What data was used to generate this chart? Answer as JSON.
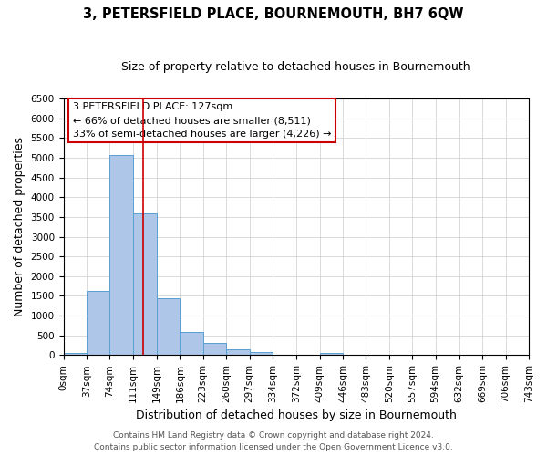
{
  "title": "3, PETERSFIELD PLACE, BOURNEMOUTH, BH7 6QW",
  "subtitle": "Size of property relative to detached houses in Bournemouth",
  "xlabel": "Distribution of detached houses by size in Bournemouth",
  "ylabel": "Number of detached properties",
  "footer_line1": "Contains HM Land Registry data © Crown copyright and database right 2024.",
  "footer_line2": "Contains public sector information licensed under the Open Government Licence v3.0.",
  "bin_edges": [
    0,
    37,
    74,
    111,
    149,
    186,
    223,
    260,
    297,
    334,
    372,
    409,
    446,
    483,
    520,
    557,
    594,
    632,
    669,
    706,
    743
  ],
  "bin_labels": [
    "0sqm",
    "37sqm",
    "74sqm",
    "111sqm",
    "149sqm",
    "186sqm",
    "223sqm",
    "260sqm",
    "297sqm",
    "334sqm",
    "372sqm",
    "409sqm",
    "446sqm",
    "483sqm",
    "520sqm",
    "557sqm",
    "594sqm",
    "632sqm",
    "669sqm",
    "706sqm",
    "743sqm"
  ],
  "counts": [
    50,
    1620,
    5070,
    3580,
    1430,
    580,
    300,
    140,
    70,
    0,
    0,
    50,
    0,
    0,
    0,
    0,
    0,
    0,
    0,
    0
  ],
  "bar_color": "#aec6e8",
  "bar_edge_color": "#5a9fd4",
  "ylim": [
    0,
    6500
  ],
  "yticks": [
    0,
    500,
    1000,
    1500,
    2000,
    2500,
    3000,
    3500,
    4000,
    4500,
    5000,
    5500,
    6000,
    6500
  ],
  "vline_x": 127,
  "vline_color": "#cc0000",
  "annotation_line1": "3 PETERSFIELD PLACE: 127sqm",
  "annotation_line2": "← 66% of detached houses are smaller (8,511)",
  "annotation_line3": "33% of semi-detached houses are larger (4,226) →",
  "annotation_box_color": "#cc0000",
  "background_color": "#ffffff",
  "grid_color": "#cccccc",
  "title_fontsize": 10.5,
  "subtitle_fontsize": 9,
  "axis_label_fontsize": 9,
  "tick_fontsize": 7.5,
  "annotation_fontsize": 8,
  "footer_fontsize": 6.5
}
